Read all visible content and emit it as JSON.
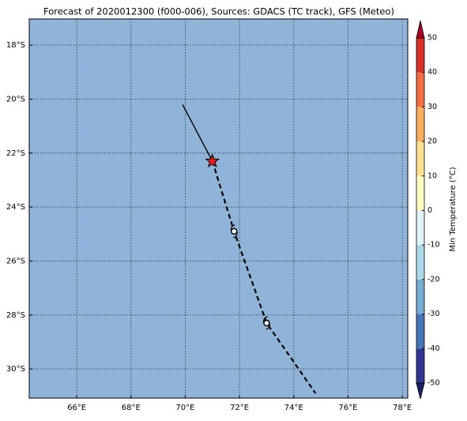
{
  "chart_data": {
    "type": "map",
    "title": "Forecast of 2020012300 (f000-006), Sources: GDACS (TC track), GFS (Meteo)",
    "xlim": [
      64.25,
      78.2
    ],
    "ylim": [
      -31.08,
      -17.03
    ],
    "xticks": [
      {
        "value": 66,
        "label": "66°E"
      },
      {
        "value": 68,
        "label": "68°E"
      },
      {
        "value": 70,
        "label": "70°E"
      },
      {
        "value": 72,
        "label": "72°E"
      },
      {
        "value": 74,
        "label": "74°E"
      },
      {
        "value": 76,
        "label": "76°E"
      },
      {
        "value": 78,
        "label": "78°E"
      }
    ],
    "yticks": [
      {
        "value": -18,
        "label": "18°S"
      },
      {
        "value": -20,
        "label": "20°S"
      },
      {
        "value": -22,
        "label": "22°S"
      },
      {
        "value": -24,
        "label": "24°S"
      },
      {
        "value": -26,
        "label": "26°S"
      },
      {
        "value": -28,
        "label": "28°S"
      },
      {
        "value": -30,
        "label": "30°S"
      }
    ],
    "grid": true,
    "ocean_color": "#8fb3d9",
    "observed": {
      "lon": [
        69.9,
        71.0
      ],
      "lat": [
        -20.2,
        -22.3
      ]
    },
    "forecast": {
      "lon": [
        71.0,
        71.8,
        73.0,
        74.8
      ],
      "lat": [
        -22.3,
        -24.9,
        -28.3,
        -30.9
      ]
    },
    "colorbar": {
      "label": "Min Temperature (°C)",
      "levels": [
        -50,
        -40,
        -30,
        -20,
        -10,
        0,
        10,
        20,
        30,
        40,
        50
      ],
      "colors": [
        "#313695",
        "#4575b4",
        "#74add1",
        "#abd9e9",
        "#e0f3f8",
        "#ffffbf",
        "#fee090",
        "#fdae61",
        "#f46d43",
        "#d73027"
      ],
      "under_color": "#1c1f66",
      "over_color": "#a50026",
      "ticks": [
        -50,
        -40,
        -30,
        -20,
        -10,
        0,
        10,
        20,
        30,
        40,
        50
      ]
    }
  }
}
